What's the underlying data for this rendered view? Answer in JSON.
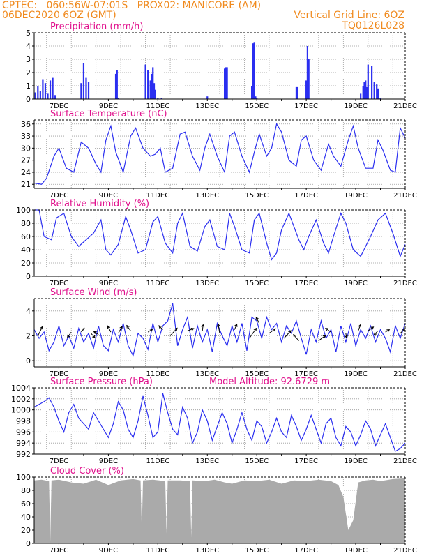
{
  "header": {
    "line1_left": "CPTEC:   060:56W-07:01S   PROX02: MANICORE (AM)",
    "line2_left": "06DEC2020 6OZ (GMT)",
    "line2_right": "Vertical Grid Line: 6OZ",
    "line3_right": "TQ0126L028"
  },
  "x_ticks": [
    "7DEC",
    "9DEC",
    "11DEC",
    "13DEC",
    "15DEC",
    "17DEC",
    "19DEC",
    "21DEC"
  ],
  "chart_data": [
    {
      "type": "bar",
      "title": "Precipitation (mm/h)",
      "ylim": [
        0,
        5
      ],
      "yticks": [
        0,
        1,
        2,
        3,
        4,
        5
      ],
      "color": "#2a2ef0",
      "x_days": [
        6.05,
        6.15,
        6.25,
        6.35,
        6.45,
        6.55,
        6.65,
        6.75,
        6.85,
        7.9,
        8.0,
        8.1,
        8.2,
        9.3,
        9.35,
        9.4,
        10.5,
        10.6,
        10.7,
        10.75,
        10.8,
        10.85,
        10.9,
        11.0,
        11.15,
        13.0,
        13.7,
        13.75,
        13.8,
        14.8,
        14.85,
        14.9,
        14.95,
        15.0,
        16.6,
        16.65,
        17.0,
        17.05,
        17.1,
        19.2,
        19.3,
        19.35,
        19.4,
        19.45,
        19.5,
        19.65,
        19.75,
        19.85,
        19.9,
        20.0
      ],
      "values": [
        0.5,
        1.0,
        0.6,
        1.5,
        1.2,
        0.4,
        1.4,
        1.6,
        0.3,
        1.2,
        2.7,
        1.6,
        1.3,
        1.9,
        2.2,
        0.1,
        2.6,
        2.2,
        1.4,
        1.9,
        2.4,
        1.2,
        0.7,
        0.1,
        0.1,
        0.2,
        2.3,
        2.4,
        2.4,
        1.0,
        4.2,
        4.3,
        0.2,
        0.1,
        0.9,
        0.9,
        1.4,
        4.0,
        3.0,
        0.4,
        1.0,
        1.3,
        1.4,
        0.9,
        2.6,
        2.5,
        1.3,
        1.1,
        0.8,
        0.1
      ]
    },
    {
      "type": "line",
      "title": "Surface Temperature (nC)",
      "ylim": [
        20,
        37
      ],
      "yticks": [
        21,
        24,
        27,
        30,
        33,
        36
      ],
      "color": "#2a2ef0",
      "x_days": [
        6.0,
        6.3,
        6.5,
        6.8,
        7.0,
        7.3,
        7.6,
        7.9,
        8.2,
        8.5,
        8.7,
        8.9,
        9.1,
        9.3,
        9.6,
        9.9,
        10.1,
        10.4,
        10.7,
        10.9,
        11.1,
        11.3,
        11.6,
        11.9,
        12.1,
        12.4,
        12.7,
        12.9,
        13.1,
        13.4,
        13.7,
        13.9,
        14.1,
        14.4,
        14.7,
        14.9,
        15.1,
        15.4,
        15.6,
        15.8,
        16.0,
        16.3,
        16.6,
        16.8,
        17.0,
        17.3,
        17.6,
        17.9,
        18.1,
        18.4,
        18.7,
        18.9,
        19.1,
        19.4,
        19.7,
        19.9,
        20.1,
        20.4,
        20.6,
        20.8,
        21.0
      ],
      "values": [
        21.3,
        21.0,
        22.5,
        28.0,
        30.0,
        25.0,
        24.0,
        31.5,
        30.0,
        26.0,
        24.0,
        32.0,
        35.5,
        29.0,
        24.0,
        33.0,
        35.0,
        30.0,
        28.0,
        28.5,
        30.0,
        24.0,
        25.0,
        33.5,
        34.0,
        28.0,
        24.5,
        30.0,
        33.5,
        28.0,
        24.0,
        33.0,
        34.0,
        28.0,
        24.0,
        29.0,
        33.5,
        28.0,
        30.0,
        36.0,
        34.0,
        27.0,
        25.5,
        32.0,
        33.0,
        27.0,
        24.5,
        31.0,
        28.0,
        25.5,
        32.0,
        35.5,
        30.0,
        25.0,
        25.0,
        32.0,
        29.5,
        24.5,
        24.0,
        35.0,
        32.5
      ]
    },
    {
      "type": "line",
      "title": "Relative Humidity (%)",
      "ylim": [
        0,
        100
      ],
      "yticks": [
        0,
        20,
        40,
        60,
        80,
        100
      ],
      "color": "#2a2ef0",
      "x_days": [
        6.0,
        6.2,
        6.4,
        6.7,
        6.9,
        7.2,
        7.5,
        7.8,
        8.1,
        8.4,
        8.7,
        8.9,
        9.1,
        9.4,
        9.7,
        9.9,
        10.2,
        10.5,
        10.8,
        11.0,
        11.3,
        11.6,
        11.8,
        12.0,
        12.3,
        12.6,
        12.9,
        13.1,
        13.4,
        13.7,
        13.9,
        14.1,
        14.4,
        14.7,
        14.9,
        15.1,
        15.4,
        15.6,
        15.8,
        16.0,
        16.3,
        16.5,
        16.7,
        16.9,
        17.1,
        17.4,
        17.7,
        17.9,
        18.1,
        18.4,
        18.6,
        18.9,
        19.2,
        19.4,
        19.6,
        19.9,
        20.2,
        20.5,
        20.8,
        21.0
      ],
      "values": [
        100,
        100,
        60,
        55,
        88,
        95,
        60,
        45,
        55,
        65,
        85,
        40,
        32,
        48,
        90,
        70,
        35,
        40,
        82,
        90,
        50,
        35,
        80,
        95,
        45,
        38,
        75,
        85,
        45,
        40,
        95,
        75,
        40,
        35,
        85,
        95,
        50,
        25,
        35,
        70,
        95,
        75,
        55,
        40,
        60,
        85,
        50,
        35,
        60,
        95,
        80,
        40,
        30,
        45,
        60,
        85,
        95,
        65,
        30,
        48
      ]
    },
    {
      "type": "line",
      "title": "Surface Wind (m/s)",
      "ylim": [
        -0.5,
        5
      ],
      "yticks": [
        0,
        2,
        4
      ],
      "color": "#2a2ef0",
      "x_days": [
        6.0,
        6.2,
        6.4,
        6.6,
        6.8,
        7.0,
        7.2,
        7.4,
        7.6,
        7.8,
        8.0,
        8.2,
        8.4,
        8.6,
        8.8,
        9.0,
        9.2,
        9.4,
        9.6,
        9.8,
        10.0,
        10.2,
        10.4,
        10.6,
        10.8,
        11.0,
        11.2,
        11.4,
        11.6,
        11.8,
        12.0,
        12.2,
        12.4,
        12.6,
        12.8,
        13.0,
        13.2,
        13.4,
        13.6,
        13.8,
        14.0,
        14.2,
        14.4,
        14.6,
        14.8,
        15.0,
        15.2,
        15.4,
        15.6,
        15.8,
        16.0,
        16.2,
        16.4,
        16.6,
        16.8,
        17.0,
        17.2,
        17.4,
        17.6,
        17.8,
        18.0,
        18.2,
        18.4,
        18.6,
        18.8,
        19.0,
        19.2,
        19.4,
        19.6,
        19.8,
        20.0,
        20.2,
        20.4,
        20.6,
        20.8,
        21.0
      ],
      "values": [
        2.5,
        1.8,
        2.3,
        0.8,
        1.5,
        2.8,
        1.2,
        2.0,
        1.0,
        2.6,
        1.5,
        2.2,
        1.0,
        2.8,
        1.2,
        0.8,
        2.5,
        1.5,
        3.0,
        1.2,
        0.4,
        2.2,
        1.8,
        0.9,
        3.0,
        1.5,
        2.8,
        3.2,
        4.6,
        1.2,
        2.5,
        3.5,
        1.0,
        2.8,
        1.5,
        2.5,
        0.7,
        3.0,
        2.0,
        1.2,
        2.8,
        1.5,
        3.0,
        0.8,
        3.5,
        3.2,
        1.8,
        3.5,
        2.5,
        3.0,
        1.5,
        2.8,
        2.2,
        3.2,
        1.8,
        0.5,
        2.5,
        1.5,
        3.2,
        1.8,
        2.5,
        0.7,
        2.8,
        1.5,
        3.0,
        1.2,
        2.5,
        1.8,
        2.8,
        1.5,
        2.5,
        1.8,
        0.7,
        2.8,
        1.8,
        3.0
      ],
      "arrows": [
        {
          "x": 6.15,
          "y": 2.0,
          "u": 0.6,
          "v": 1.2
        },
        {
          "x": 7.5,
          "y": 2.3,
          "u": -0.5,
          "v": -0.7
        },
        {
          "x": 7.9,
          "y": 2.3,
          "u": 0.4,
          "v": 0.5
        },
        {
          "x": 8.3,
          "y": 2.2,
          "u": 0.5,
          "v": -0.6
        },
        {
          "x": 8.6,
          "y": 2.1,
          "u": -0.6,
          "v": 0.4
        },
        {
          "x": 9.1,
          "y": 2.3,
          "u": -0.4,
          "v": 0.8
        },
        {
          "x": 9.4,
          "y": 2.2,
          "u": 0.5,
          "v": 0.9
        },
        {
          "x": 9.9,
          "y": 2.4,
          "u": -0.5,
          "v": 0.7
        },
        {
          "x": 10.6,
          "y": 2.3,
          "u": 0.6,
          "v": 0.4
        },
        {
          "x": 11.2,
          "y": 2.5,
          "u": -0.5,
          "v": 0.5
        },
        {
          "x": 11.5,
          "y": 2.0,
          "u": 0.9,
          "v": 1.0
        },
        {
          "x": 12.2,
          "y": 2.4,
          "u": 0.8,
          "v": 0.3
        },
        {
          "x": 12.8,
          "y": 2.4,
          "u": 0.1,
          "v": 0.8
        },
        {
          "x": 13.5,
          "y": 2.2,
          "u": -0.2,
          "v": 1.2
        },
        {
          "x": 14.1,
          "y": 2.5,
          "u": 0.3,
          "v": 0.7
        },
        {
          "x": 14.7,
          "y": 1.8,
          "u": 0.9,
          "v": 1.3
        },
        {
          "x": 15.1,
          "y": 3.0,
          "u": -0.4,
          "v": 0.8
        },
        {
          "x": 15.5,
          "y": 2.2,
          "u": 0.8,
          "v": 0.6
        },
        {
          "x": 16.1,
          "y": 1.8,
          "u": 0.9,
          "v": 1.0
        },
        {
          "x": 16.7,
          "y": 1.6,
          "u": -0.7,
          "v": 0.8
        },
        {
          "x": 17.5,
          "y": 1.6,
          "u": 0.9,
          "v": 0.7
        },
        {
          "x": 18.0,
          "y": 2.3,
          "u": -0.7,
          "v": 0.5
        },
        {
          "x": 18.6,
          "y": 2.2,
          "u": 0.1,
          "v": -0.6
        },
        {
          "x": 19.1,
          "y": 2.4,
          "u": 0.3,
          "v": 0.8
        },
        {
          "x": 19.5,
          "y": 2.4,
          "u": 0.7,
          "v": 0.5
        },
        {
          "x": 19.9,
          "y": 2.4,
          "u": -0.5,
          "v": -0.5
        },
        {
          "x": 20.2,
          "y": 2.3,
          "u": 0.5,
          "v": 0.3
        },
        {
          "x": 20.8,
          "y": 2.2,
          "u": 0.6,
          "v": 0.6
        }
      ]
    },
    {
      "type": "line",
      "title": "Surface Pressure (hPa)",
      "annotation": "Model Altitude: 92.6729 m",
      "ylim": [
        992,
        1004
      ],
      "yticks": [
        992,
        994,
        996,
        998,
        1000,
        1002,
        1004
      ],
      "color": "#2a2ef0",
      "x_days": [
        6.0,
        6.2,
        6.4,
        6.6,
        6.8,
        7.0,
        7.2,
        7.4,
        7.6,
        7.8,
        8.0,
        8.2,
        8.4,
        8.6,
        8.8,
        9.0,
        9.2,
        9.4,
        9.6,
        9.8,
        10.0,
        10.2,
        10.4,
        10.6,
        10.8,
        11.0,
        11.2,
        11.4,
        11.6,
        11.8,
        12.0,
        12.2,
        12.4,
        12.6,
        12.8,
        13.0,
        13.2,
        13.4,
        13.6,
        13.8,
        14.0,
        14.2,
        14.4,
        14.6,
        14.8,
        15.0,
        15.2,
        15.4,
        15.6,
        15.8,
        16.0,
        16.2,
        16.4,
        16.6,
        16.8,
        17.0,
        17.2,
        17.4,
        17.6,
        17.8,
        18.0,
        18.2,
        18.4,
        18.6,
        18.8,
        19.0,
        19.2,
        19.4,
        19.6,
        19.8,
        20.0,
        20.2,
        20.4,
        20.6,
        20.8,
        21.0
      ],
      "values": [
        1000.5,
        1001.0,
        1001.5,
        1002.2,
        1000.5,
        998.0,
        996.0,
        999.5,
        1001.0,
        998.5,
        997.5,
        996.5,
        999.5,
        998.0,
        996.5,
        995.0,
        997.5,
        1001.5,
        1000.0,
        996.5,
        995.0,
        998.0,
        1002.5,
        999.0,
        995.0,
        996.0,
        1003.0,
        999.5,
        996.5,
        995.5,
        1000.5,
        998.5,
        994.0,
        996.0,
        1000.0,
        998.0,
        994.5,
        997.0,
        999.5,
        997.5,
        994.0,
        996.5,
        999.5,
        996.5,
        994.5,
        998.0,
        997.0,
        994.0,
        996.0,
        998.5,
        996.0,
        995.0,
        999.0,
        997.0,
        994.5,
        996.5,
        999.0,
        996.5,
        994.0,
        997.5,
        998.5,
        995.0,
        993.5,
        997.0,
        996.0,
        993.5,
        995.5,
        998.0,
        996.5,
        993.5,
        995.5,
        997.5,
        995.0,
        992.5,
        993.0,
        994.0
      ]
    },
    {
      "type": "area",
      "title": "Cloud Cover (%)",
      "ylim": [
        0,
        100
      ],
      "yticks": [
        0,
        20,
        40,
        60,
        80,
        100
      ],
      "color": "#aaaaaa",
      "x_days": [
        6.0,
        6.3,
        6.6,
        6.65,
        6.7,
        7.0,
        7.5,
        8.0,
        8.5,
        9.0,
        9.5,
        10.0,
        10.3,
        10.35,
        10.4,
        10.8,
        11.3,
        11.35,
        11.4,
        11.9,
        12.3,
        12.35,
        12.4,
        12.9,
        13.3,
        13.7,
        14.0,
        14.5,
        15.0,
        15.5,
        16.0,
        16.5,
        17.0,
        17.5,
        18.0,
        18.3,
        18.5,
        18.7,
        18.9,
        19.1,
        19.4,
        19.7,
        20.0,
        20.5,
        21.0
      ],
      "values": [
        95,
        96,
        94,
        3,
        95,
        96,
        92,
        90,
        96,
        88,
        95,
        97,
        95,
        20,
        95,
        96,
        94,
        15,
        95,
        95,
        94,
        10,
        95,
        94,
        96,
        92,
        90,
        95,
        94,
        96,
        90,
        95,
        94,
        96,
        94,
        88,
        70,
        20,
        35,
        92,
        95,
        96,
        94,
        97,
        98
      ]
    }
  ]
}
